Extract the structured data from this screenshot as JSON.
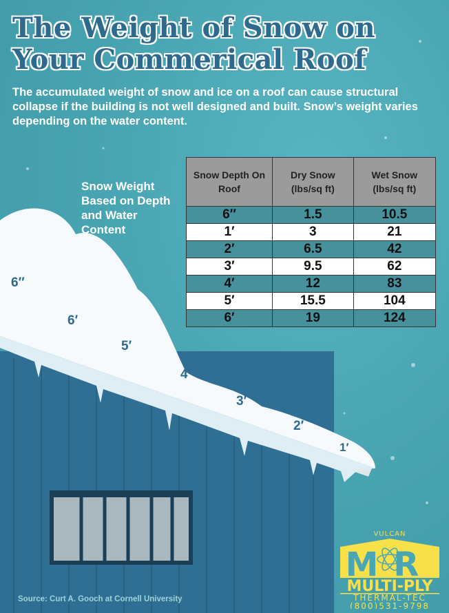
{
  "title": {
    "line1": "The Weight of Snow on",
    "line2": "Your Commerical Roof"
  },
  "intro": "The accumulated weight of snow and ice on a roof can cause structural collapse if the building is not well designed and built. Snow’s weight varies depending on the water content.",
  "table_label": "Snow Weight Based on Depth and Water Content",
  "table": {
    "headers": [
      "Snow Depth On Roof",
      "Dry Snow (lbs/sq ft)",
      "Wet Snow (lbs/sq ft)"
    ],
    "rows": [
      [
        "6″",
        "1.5",
        "10.5"
      ],
      [
        "1′",
        "3",
        "21"
      ],
      [
        "2′",
        "6.5",
        "42"
      ],
      [
        "3′",
        "9.5",
        "62"
      ],
      [
        "4′",
        "12",
        "83"
      ],
      [
        "5′",
        "15.5",
        "104"
      ],
      [
        "6′",
        "19",
        "124"
      ]
    ]
  },
  "roof_depth_labels": [
    "6″",
    "6′",
    "5′",
    "4′",
    "3′",
    "2′",
    "1′"
  ],
  "source": "Source: Curt A. Gooch at Cornell University",
  "logo": {
    "top": "VULCAN",
    "mark": "MR",
    "brand": "MULTI-PLY",
    "sub": "THERMAL-TEC",
    "phone": "(800)531-9798"
  },
  "colors": {
    "background": "#4aa6b3",
    "title": "#2e6a8e",
    "building": "#2f6f94",
    "logo": "#f7e04a",
    "table_header": "#9b9b9b",
    "table_alt_row": "#46919c"
  }
}
